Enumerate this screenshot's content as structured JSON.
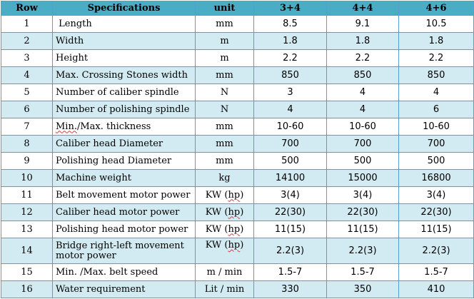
{
  "table": {
    "headers": [
      "Row",
      "Specifications",
      "unit",
      "3+4",
      "4+4",
      "4+6"
    ],
    "rows": [
      {
        "row": "1",
        "spec": " Length",
        "unit": "mm",
        "v": [
          "8.5",
          "9.1",
          "10.5"
        ]
      },
      {
        "row": "2",
        "spec": "Width",
        "unit": "m",
        "v": [
          "1.8",
          "1.8",
          "1.8"
        ]
      },
      {
        "row": "3",
        "spec": "Height",
        "unit": "m",
        "v": [
          "2.2",
          "2.2",
          "2.2"
        ]
      },
      {
        "row": "4",
        "spec": "Max. Crossing Stones width",
        "unit": "mm",
        "v": [
          "850",
          "850",
          "850"
        ]
      },
      {
        "row": "5",
        "spec": "Number of caliber spindle",
        "unit": "N",
        "v": [
          "3",
          "4",
          "4"
        ]
      },
      {
        "row": "6",
        "spec": "Number of polishing spindle",
        "unit": "N",
        "v": [
          "4",
          "4",
          "6"
        ]
      },
      {
        "row": "7",
        "spec_a": "Min.",
        "spec_b": "/Max. thickness",
        "unit": "mm",
        "v": [
          "10-60",
          "10-60",
          "10-60"
        ]
      },
      {
        "row": "8",
        "spec": "Caliber head Diameter",
        "unit": "mm",
        "v": [
          "700",
          "700",
          "700"
        ]
      },
      {
        "row": "9",
        "spec": "Polishing head Diameter",
        "unit": "mm",
        "v": [
          "500",
          "500",
          "500"
        ]
      },
      {
        "row": "10",
        "spec": "Machine weight",
        "unit": "kg",
        "v": [
          "14100",
          "15000",
          "16800"
        ]
      },
      {
        "row": "11",
        "spec": "Belt movement motor power",
        "unit_a": "KW (",
        "unit_b": "hp",
        "unit_c": ")",
        "v": [
          "3(4)",
          "3(4)",
          "3(4)"
        ]
      },
      {
        "row": "12",
        "spec": "Caliber head motor power",
        "unit_a": "KW (",
        "unit_b": "hp",
        "unit_c": ")",
        "v": [
          "22(30)",
          "22(30)",
          "22(30)"
        ]
      },
      {
        "row": "13",
        "spec": "Polishing head motor power",
        "unit_a": "KW (",
        "unit_b": "hp",
        "unit_c": ")",
        "v": [
          "11(15)",
          "11(15)",
          "11(15)"
        ]
      },
      {
        "row": "14",
        "spec_a": "Bridge right-left movement",
        "spec_b": "motor power",
        "unit_a": "KW (",
        "unit_b": "hp",
        "unit_c": ")",
        "v": [
          "2.2(3)",
          "2.2(3)",
          "2.2(3)"
        ]
      },
      {
        "row": "15",
        "spec": "Min. /Max. belt speed",
        "unit": "m / min",
        "v": [
          "1.5-7",
          "1.5-7",
          "1.5-7"
        ]
      },
      {
        "row": "16",
        "spec": "Water requirement",
        "unit": "Lit / min",
        "v": [
          "330",
          "350",
          "410"
        ]
      }
    ]
  },
  "colors": {
    "header_bg": "#4bacc6",
    "band_bg": "#d2eaf1",
    "border": "#5b9bd5"
  }
}
